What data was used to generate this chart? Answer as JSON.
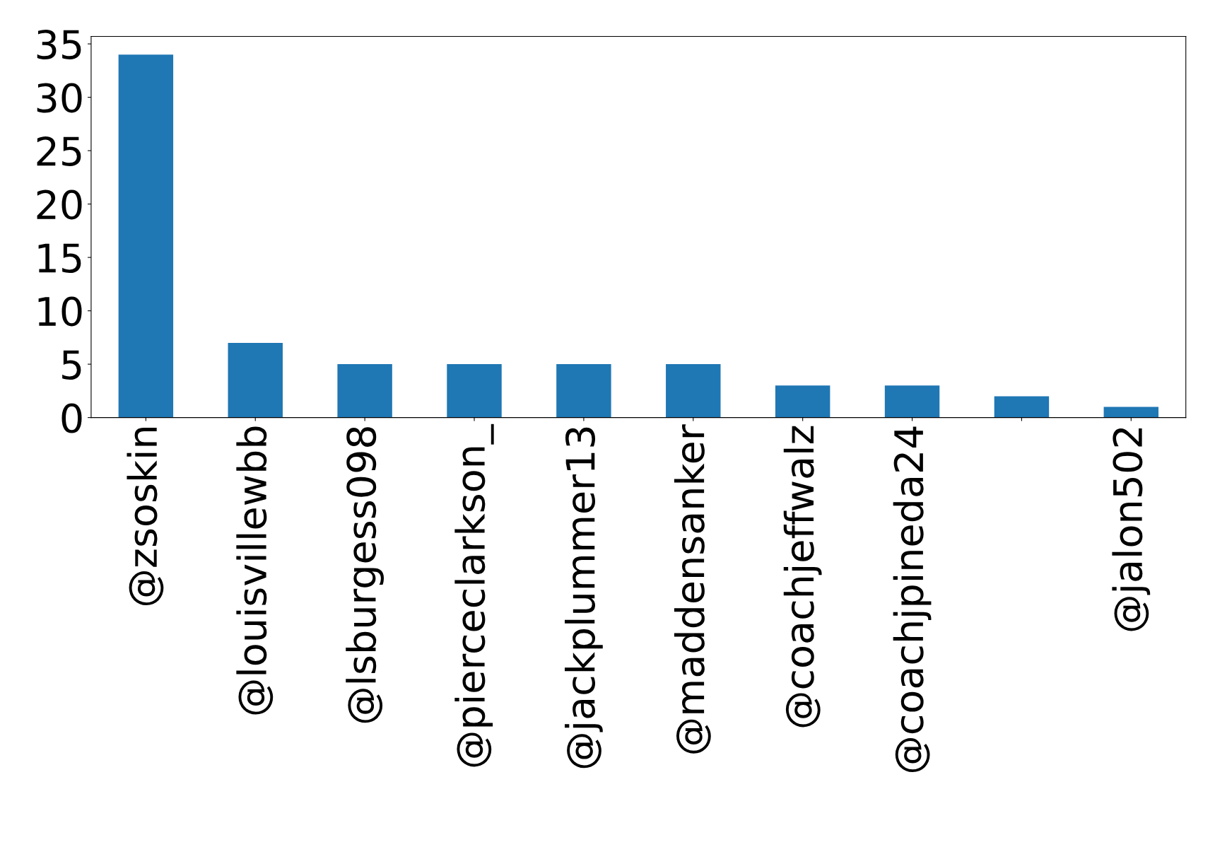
{
  "chart_data": {
    "type": "bar",
    "categories": [
      "@zsoskin",
      "@louisvillewbb",
      "@lsburgess098",
      "@pierceclarkson_",
      "@jackplummer13",
      "@maddensanker",
      "@coachjeffwalz",
      "@coachjpineda24",
      null,
      "@jalon502"
    ],
    "values": [
      34,
      7,
      5,
      5,
      5,
      5,
      3,
      3,
      2,
      1
    ],
    "color": "#1f77b4",
    "ylim": [
      0,
      35.7
    ],
    "yticks": [
      0,
      5,
      10,
      15,
      20,
      25,
      30,
      35
    ],
    "grid": false,
    "legend": false
  }
}
